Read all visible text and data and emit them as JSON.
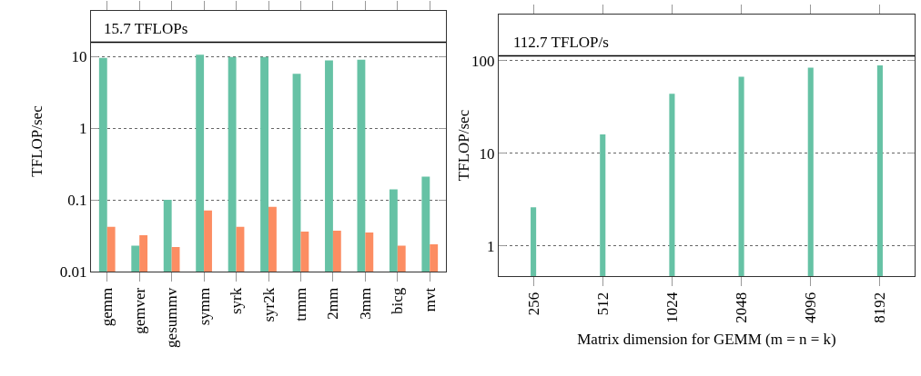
{
  "chart_data": [
    {
      "type": "bar",
      "ylabel": "TFLOP/sec",
      "categories": [
        "gemm",
        "gemver",
        "gesummv",
        "symm",
        "syrk",
        "syr2k",
        "trmm",
        "2mm",
        "3mm",
        "bicg",
        "mvt"
      ],
      "series": [
        {
          "color": "#66c2a5",
          "values": [
            9.5,
            0.023,
            0.1,
            10.5,
            9.8,
            9.8,
            5.7,
            8.8,
            9.0,
            0.14,
            0.21
          ]
        },
        {
          "color": "#fc8d62",
          "values": [
            0.042,
            0.032,
            0.022,
            0.071,
            0.042,
            0.08,
            0.036,
            0.037,
            0.035,
            0.023,
            0.024
          ]
        }
      ],
      "log": true,
      "ylim": [
        0.01,
        43
      ],
      "yticks": [
        0.01,
        0.1,
        1,
        10
      ],
      "grid": "y",
      "ref_lines": [
        {
          "axis": "y",
          "value": 15.7,
          "label": "15.7 TFLOPs"
        }
      ]
    },
    {
      "type": "bar",
      "ylabel": "TFLOP/sec",
      "xlabel": "Matrix dimension for GEMM (m = n = k)",
      "categories": [
        "256",
        "512",
        "1024",
        "2048",
        "4096",
        "8192"
      ],
      "series": [
        {
          "color": "#66c2a5",
          "values": [
            2.6,
            16,
            44,
            67,
            84,
            89
          ]
        }
      ],
      "log": true,
      "ylim": [
        0.47,
        316
      ],
      "yticks": [
        1,
        10,
        100
      ],
      "grid": "y",
      "ref_lines": [
        {
          "axis": "y",
          "value": 112.7,
          "label": "112.7 TFLOP/s"
        }
      ]
    }
  ]
}
